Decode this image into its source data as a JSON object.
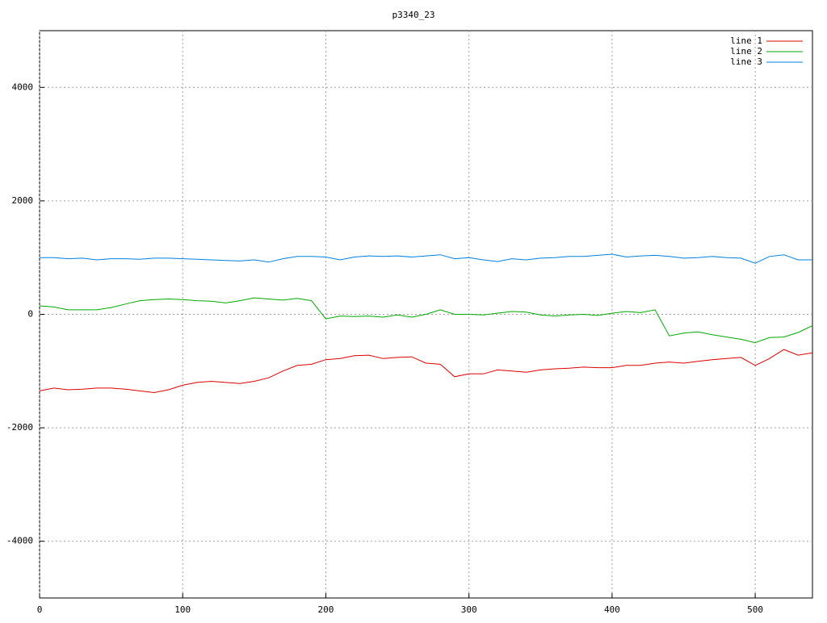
{
  "chart_data": {
    "type": "line",
    "title": "p3340_23",
    "x": [
      0,
      10,
      20,
      30,
      40,
      50,
      60,
      70,
      80,
      90,
      100,
      110,
      120,
      130,
      140,
      150,
      160,
      170,
      180,
      190,
      200,
      210,
      220,
      230,
      240,
      250,
      260,
      270,
      280,
      290,
      300,
      310,
      320,
      330,
      340,
      350,
      360,
      370,
      380,
      390,
      400,
      410,
      420,
      430,
      440,
      450,
      460,
      470,
      480,
      490,
      500,
      510,
      520,
      530,
      540
    ],
    "series": [
      {
        "name": "line 1",
        "color": "#dd0000",
        "values": [
          -1350,
          -1300,
          -1330,
          -1320,
          -1300,
          -1300,
          -1320,
          -1350,
          -1380,
          -1330,
          -1250,
          -1200,
          -1180,
          -1200,
          -1220,
          -1180,
          -1120,
          -1000,
          -900,
          -880,
          -800,
          -780,
          -730,
          -720,
          -780,
          -760,
          -750,
          -860,
          -880,
          -1100,
          -1050,
          -1050,
          -980,
          -1000,
          -1020,
          -980,
          -960,
          -950,
          -930,
          -940,
          -940,
          -900,
          -900,
          -860,
          -840,
          -860,
          -830,
          -800,
          -780,
          -760,
          -900,
          -780,
          -620,
          -720,
          -680
        ]
      },
      {
        "name": "line 2",
        "color": "#00aa00",
        "values": [
          150,
          130,
          80,
          80,
          80,
          120,
          180,
          240,
          260,
          270,
          260,
          240,
          230,
          200,
          240,
          290,
          270,
          250,
          280,
          240,
          -80,
          -30,
          -40,
          -30,
          -50,
          -10,
          -50,
          0,
          80,
          0,
          0,
          -10,
          20,
          50,
          40,
          -10,
          -30,
          -10,
          0,
          -20,
          20,
          50,
          30,
          80,
          -380,
          -330,
          -310,
          -360,
          -400,
          -440,
          -500,
          -410,
          -400,
          -320,
          -200
        ]
      },
      {
        "name": "line 3",
        "color": "#0080e0",
        "values": [
          1000,
          1000,
          980,
          990,
          960,
          980,
          980,
          970,
          990,
          990,
          980,
          970,
          960,
          950,
          940,
          960,
          920,
          980,
          1020,
          1020,
          1010,
          960,
          1010,
          1030,
          1020,
          1030,
          1010,
          1030,
          1050,
          980,
          1000,
          960,
          930,
          980,
          960,
          990,
          1000,
          1020,
          1020,
          1040,
          1060,
          1010,
          1030,
          1040,
          1020,
          990,
          1000,
          1020,
          1000,
          990,
          900,
          1020,
          1050,
          960,
          960
        ]
      }
    ],
    "xlim": [
      0,
      540
    ],
    "xticks": [
      0,
      100,
      200,
      300,
      400,
      500
    ],
    "ylim": [
      -5000,
      5000
    ],
    "yticks": [
      -4000,
      -2000,
      0,
      2000,
      4000
    ],
    "grid": true,
    "legend": "top-right"
  }
}
